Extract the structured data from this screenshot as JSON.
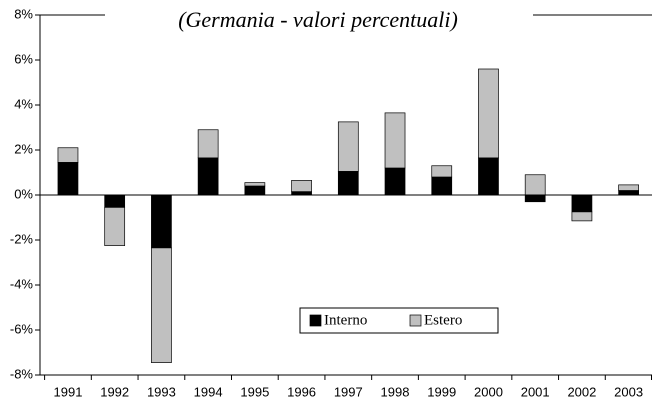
{
  "chart_data": {
    "type": "bar",
    "stacked": true,
    "title": "(Germania - valori percentuali)",
    "categories": [
      "1991",
      "1992",
      "1993",
      "1994",
      "1995",
      "1996",
      "1997",
      "1998",
      "1999",
      "2000",
      "2001",
      "2002",
      "2003"
    ],
    "series": [
      {
        "name": "Interno",
        "color": "#000000",
        "values": [
          1.45,
          -0.55,
          -2.35,
          1.65,
          0.4,
          0.15,
          1.05,
          1.2,
          0.8,
          1.65,
          -0.3,
          -0.75,
          0.2
        ]
      },
      {
        "name": "Estero",
        "color": "#c0c0c0",
        "values": [
          0.65,
          -1.7,
          -5.1,
          1.25,
          0.15,
          0.5,
          2.2,
          2.45,
          0.5,
          3.95,
          0.9,
          -0.4,
          0.25
        ]
      }
    ],
    "ylim": [
      -8,
      8
    ],
    "yticks": [
      {
        "value": -8,
        "label": "-8%"
      },
      {
        "value": -6,
        "label": "-6%"
      },
      {
        "value": -4,
        "label": "-4%"
      },
      {
        "value": -2,
        "label": "-2%"
      },
      {
        "value": 0,
        "label": "0%"
      },
      {
        "value": 2,
        "label": "2%"
      },
      {
        "value": 4,
        "label": "4%"
      },
      {
        "value": 6,
        "label": "6%"
      },
      {
        "value": 8,
        "label": "8%"
      }
    ],
    "legend": "bottom-center"
  }
}
